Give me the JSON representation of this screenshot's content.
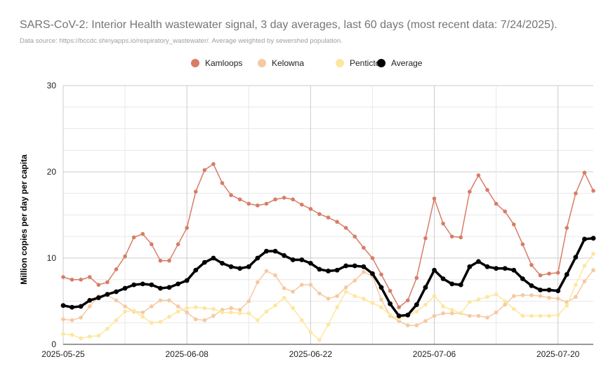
{
  "chart_data": {
    "type": "line",
    "title": "SARS-CoV-2: Interior Health wastewater signal, 3 day averages, last 60 days (most recent data: 7/24/2025).",
    "subtitle": "Data source: https://bccdc.shinyapps.io/respiratory_wastewater/. Average weighted by sewershed population.",
    "xlabel": "",
    "ylabel": "Million copies per day per capita",
    "ylim": [
      0,
      30
    ],
    "yticks": [
      0,
      10,
      20,
      30
    ],
    "x_start": "2025-05-25",
    "x_ticks": [
      {
        "label": "2025-05-25",
        "day": 0
      },
      {
        "label": "2025-06-08",
        "day": 14
      },
      {
        "label": "2025-06-22",
        "day": 28
      },
      {
        "label": "2025-07-06",
        "day": 42
      },
      {
        "label": "2025-07-20",
        "day": 56
      }
    ],
    "legend_position": "top-center",
    "series": [
      {
        "name": "Kamloops",
        "color": "#d87c66",
        "width": 1.5,
        "values": [
          7.8,
          7.5,
          7.5,
          7.8,
          6.9,
          7.2,
          8.7,
          10.2,
          12.4,
          12.8,
          11.6,
          9.7,
          9.7,
          11.6,
          13.5,
          17.7,
          20.2,
          20.9,
          18.7,
          17.3,
          16.8,
          16.3,
          16.1,
          16.3,
          16.8,
          17.0,
          16.8,
          16.2,
          15.7,
          15.1,
          14.7,
          14.2,
          13.5,
          12.5,
          11.2,
          10.0,
          8.1,
          6.2,
          4.3,
          5.1,
          7.7,
          12.3,
          16.9,
          14.0,
          12.5,
          12.4,
          17.7,
          19.6,
          17.9,
          16.3,
          15.4,
          13.9,
          11.6,
          9.2,
          8.0,
          8.2,
          8.3,
          13.5,
          17.5,
          19.9,
          17.8
        ]
      },
      {
        "name": "Kelowna",
        "color": "#f6c9a1",
        "width": 1.5,
        "values": [
          2.9,
          2.8,
          3.1,
          4.4,
          5.6,
          5.7,
          5.1,
          4.4,
          3.8,
          3.7,
          4.4,
          5.1,
          5.1,
          4.4,
          3.7,
          2.9,
          2.8,
          3.3,
          4.0,
          4.2,
          4.0,
          5.0,
          7.2,
          8.5,
          8.0,
          6.5,
          6.1,
          6.9,
          6.9,
          5.9,
          5.3,
          5.6,
          6.6,
          7.4,
          8.4,
          7.9,
          5.2,
          3.3,
          2.7,
          2.2,
          2.2,
          2.7,
          3.3,
          3.6,
          3.6,
          3.6,
          3.3,
          3.3,
          3.1,
          3.7,
          4.6,
          5.6,
          5.7,
          5.7,
          5.6,
          5.4,
          5.3,
          4.9,
          5.5,
          7.3,
          8.6
        ]
      },
      {
        "name": "Penticton",
        "color": "#fde79f",
        "width": 1.5,
        "values": [
          1.2,
          1.1,
          0.7,
          0.9,
          1.0,
          1.8,
          2.8,
          3.8,
          3.9,
          3.2,
          2.5,
          2.6,
          3.2,
          3.8,
          4.2,
          4.3,
          4.2,
          4.1,
          3.7,
          3.7,
          3.6,
          3.6,
          2.8,
          3.8,
          4.5,
          5.4,
          4.2,
          2.8,
          1.4,
          0.5,
          2.3,
          4.3,
          6.1,
          5.6,
          5.3,
          4.8,
          4.3,
          3.4,
          3.0,
          3.3,
          3.8,
          4.6,
          5.6,
          4.4,
          4.0,
          3.6,
          4.9,
          5.2,
          5.5,
          5.8,
          5.0,
          4.1,
          3.3,
          3.3,
          3.3,
          3.3,
          3.4,
          4.5,
          6.9,
          9.1,
          10.5
        ]
      },
      {
        "name": "Average",
        "color": "#000000",
        "width": 3.5,
        "values": [
          4.5,
          4.3,
          4.4,
          5.1,
          5.4,
          5.8,
          6.1,
          6.5,
          6.9,
          7.0,
          6.9,
          6.5,
          6.6,
          7.0,
          7.4,
          8.6,
          9.5,
          10.0,
          9.4,
          9.0,
          8.8,
          9.0,
          10.0,
          10.8,
          10.8,
          10.3,
          9.8,
          9.8,
          9.4,
          8.7,
          8.5,
          8.6,
          9.1,
          9.1,
          9.0,
          8.2,
          6.6,
          4.7,
          3.3,
          3.4,
          4.6,
          6.6,
          8.6,
          7.6,
          7.0,
          6.9,
          9.0,
          9.6,
          9.0,
          8.8,
          8.8,
          8.6,
          7.6,
          6.8,
          6.3,
          6.3,
          6.2,
          8.1,
          10.1,
          12.2,
          12.3
        ]
      }
    ]
  }
}
